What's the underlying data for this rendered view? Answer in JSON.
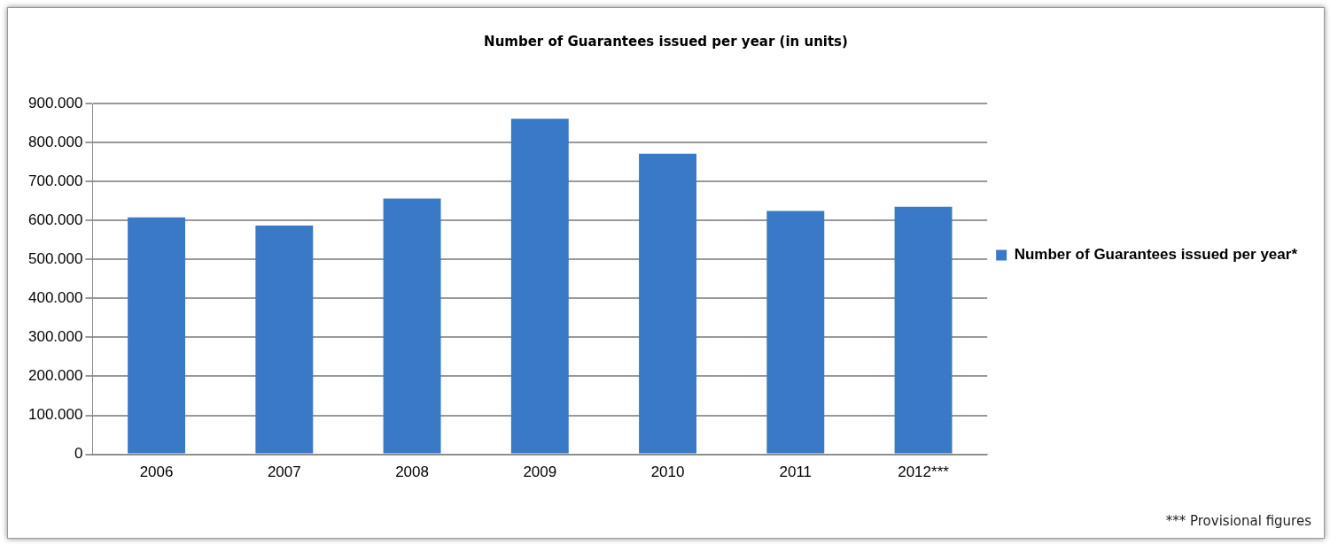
{
  "chart_data": {
    "type": "bar",
    "title": "Number of Guarantees issued per year (in units)",
    "categories": [
      "2006",
      "2007",
      "2008",
      "2009",
      "2010",
      "2011",
      "2012***"
    ],
    "series": [
      {
        "name": "Number of Guarantees issued per year*",
        "color": "#3a78c8",
        "values": [
          608000,
          587000,
          656000,
          861000,
          771000,
          624000,
          635000
        ]
      }
    ],
    "ylim": [
      0,
      900000
    ],
    "yticks": [
      {
        "value": 0,
        "label": "0"
      },
      {
        "value": 100000,
        "label": "100.000"
      },
      {
        "value": 200000,
        "label": "200.000"
      },
      {
        "value": 300000,
        "label": "300.000"
      },
      {
        "value": 400000,
        "label": "400.000"
      },
      {
        "value": 500000,
        "label": "500.000"
      },
      {
        "value": 600000,
        "label": "600.000"
      },
      {
        "value": 700000,
        "label": "700.000"
      },
      {
        "value": 800000,
        "label": "800.000"
      },
      {
        "value": 900000,
        "label": "900.000"
      }
    ],
    "grid": "y",
    "legend": "right",
    "annotations": [
      "*** Provisional figures"
    ]
  }
}
